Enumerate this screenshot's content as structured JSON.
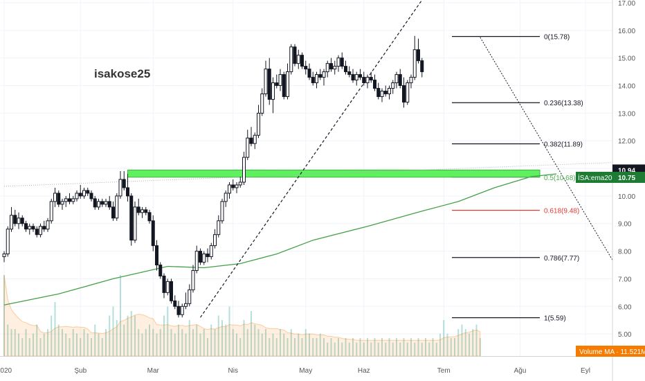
{
  "watermark": "isakose25",
  "chart_data": {
    "type": "candlestick",
    "y_axis": {
      "ticks": [
        "17.00",
        "16.00",
        "15.00",
        "14.00",
        "13.00",
        "12.00",
        "11.00",
        "10.00",
        "9.00",
        "8.00",
        "7.00",
        "6.00",
        "5.00"
      ],
      "range": [
        4.2,
        17.1
      ]
    },
    "x_axis": {
      "ticks": [
        {
          "label": "2020",
          "i": 0
        },
        {
          "label": "Şub",
          "i": 21
        },
        {
          "label": "Mar",
          "i": 41
        },
        {
          "label": "Nis",
          "i": 63
        },
        {
          "label": "May",
          "i": 83
        },
        {
          "label": "Haz",
          "i": 99
        },
        {
          "label": "Tem",
          "i": 121
        },
        {
          "label": "Ağu",
          "i": 142
        },
        {
          "label": "Eyl",
          "i": 160
        }
      ]
    },
    "price_badge": {
      "label": "10.94",
      "value": 10.94,
      "color": "#131722"
    },
    "ema_badge": {
      "label": "İSA:ema200",
      "value_label": "10.75",
      "value": 10.75,
      "color": "#1e7b34"
    },
    "volume_badge": {
      "label": "Volume MA · 11.521M",
      "color": "#f57c00"
    },
    "fib_levels": [
      {
        "label": "0(15.78)",
        "value": 15.78,
        "color": "#131722"
      },
      {
        "label": "0.236(13.38)",
        "value": 13.38,
        "color": "#131722"
      },
      {
        "label": "0.382(11.89)",
        "value": 11.89,
        "color": "#131722"
      },
      {
        "label": "0.5(10.68)",
        "value": 10.68,
        "color": "#4caf50"
      },
      {
        "label": "0.618(9.48)",
        "value": 9.48,
        "color": "#e53935"
      },
      {
        "label": "0.786(7.77)",
        "value": 7.77,
        "color": "#131722"
      },
      {
        "label": "1(5.59)",
        "value": 5.59,
        "color": "#131722"
      }
    ],
    "support_zone": {
      "top": 10.94,
      "bottom": 10.68,
      "color": "#5ef05e"
    },
    "ema200": [
      {
        "i": 0,
        "v": 6.05
      },
      {
        "i": 15,
        "v": 6.45
      },
      {
        "i": 30,
        "v": 7.0
      },
      {
        "i": 45,
        "v": 7.45
      },
      {
        "i": 55,
        "v": 7.4
      },
      {
        "i": 65,
        "v": 7.55
      },
      {
        "i": 75,
        "v": 7.9
      },
      {
        "i": 85,
        "v": 8.4
      },
      {
        "i": 100,
        "v": 8.9
      },
      {
        "i": 115,
        "v": 9.45
      },
      {
        "i": 125,
        "v": 9.8
      },
      {
        "i": 135,
        "v": 10.3
      },
      {
        "i": 145,
        "v": 10.7
      },
      {
        "i": 152,
        "v": 10.8
      }
    ],
    "trend_line_up": [
      {
        "i": 54,
        "v": 5.6
      },
      {
        "i": 115,
        "v": 17.1
      }
    ],
    "trend_line_down": [
      {
        "i": 131,
        "v": 15.75
      },
      {
        "i": 175,
        "v": 6.0
      }
    ],
    "faint_line": [
      {
        "i": 0,
        "v": 10.35
      },
      {
        "i": 175,
        "v": 11.25
      }
    ],
    "candles": [
      {
        "o": 7.8,
        "h": 8.0,
        "l": 7.6,
        "c": 7.9
      },
      {
        "o": 7.9,
        "h": 8.9,
        "l": 7.8,
        "c": 8.8
      },
      {
        "o": 8.8,
        "h": 9.6,
        "l": 8.7,
        "c": 9.3
      },
      {
        "o": 9.3,
        "h": 9.5,
        "l": 8.9,
        "c": 9.0
      },
      {
        "o": 9.0,
        "h": 9.4,
        "l": 8.8,
        "c": 9.2
      },
      {
        "o": 9.2,
        "h": 9.3,
        "l": 8.9,
        "c": 9.0
      },
      {
        "o": 9.0,
        "h": 9.1,
        "l": 8.7,
        "c": 8.8
      },
      {
        "o": 8.8,
        "h": 9.0,
        "l": 8.6,
        "c": 8.9
      },
      {
        "o": 8.9,
        "h": 9.0,
        "l": 8.7,
        "c": 8.8
      },
      {
        "o": 8.8,
        "h": 8.9,
        "l": 8.5,
        "c": 8.6
      },
      {
        "o": 8.6,
        "h": 9.0,
        "l": 8.5,
        "c": 8.9
      },
      {
        "o": 8.9,
        "h": 9.1,
        "l": 8.7,
        "c": 8.8
      },
      {
        "o": 8.8,
        "h": 9.2,
        "l": 8.7,
        "c": 9.1
      },
      {
        "o": 9.1,
        "h": 9.9,
        "l": 9.0,
        "c": 9.8
      },
      {
        "o": 9.8,
        "h": 10.3,
        "l": 9.6,
        "c": 10.1
      },
      {
        "o": 10.1,
        "h": 10.2,
        "l": 9.6,
        "c": 9.7
      },
      {
        "o": 9.7,
        "h": 9.9,
        "l": 9.5,
        "c": 9.8
      },
      {
        "o": 9.8,
        "h": 10.0,
        "l": 9.6,
        "c": 9.9
      },
      {
        "o": 9.9,
        "h": 10.1,
        "l": 9.7,
        "c": 9.8
      },
      {
        "o": 9.8,
        "h": 10.0,
        "l": 9.7,
        "c": 9.9
      },
      {
        "o": 9.9,
        "h": 10.2,
        "l": 9.8,
        "c": 10.1
      },
      {
        "o": 10.1,
        "h": 10.4,
        "l": 9.9,
        "c": 10.0
      },
      {
        "o": 10.0,
        "h": 10.3,
        "l": 9.9,
        "c": 10.2
      },
      {
        "o": 10.2,
        "h": 10.3,
        "l": 10.0,
        "c": 10.1
      },
      {
        "o": 10.1,
        "h": 10.2,
        "l": 9.8,
        "c": 9.9
      },
      {
        "o": 9.9,
        "h": 10.0,
        "l": 9.5,
        "c": 9.6
      },
      {
        "o": 9.6,
        "h": 9.9,
        "l": 9.5,
        "c": 9.8
      },
      {
        "o": 9.8,
        "h": 9.9,
        "l": 9.6,
        "c": 9.7
      },
      {
        "o": 9.7,
        "h": 9.9,
        "l": 9.6,
        "c": 9.8
      },
      {
        "o": 9.8,
        "h": 10.0,
        "l": 9.5,
        "c": 9.6
      },
      {
        "o": 9.6,
        "h": 9.8,
        "l": 9.1,
        "c": 9.2
      },
      {
        "o": 9.2,
        "h": 10.1,
        "l": 9.1,
        "c": 10.0
      },
      {
        "o": 10.0,
        "h": 10.9,
        "l": 9.9,
        "c": 10.6
      },
      {
        "o": 10.6,
        "h": 10.9,
        "l": 10.2,
        "c": 10.3
      },
      {
        "o": 10.3,
        "h": 10.8,
        "l": 9.8,
        "c": 10.0
      },
      {
        "o": 10.0,
        "h": 10.1,
        "l": 8.2,
        "c": 8.4
      },
      {
        "o": 8.4,
        "h": 9.8,
        "l": 8.3,
        "c": 9.6
      },
      {
        "o": 9.6,
        "h": 9.9,
        "l": 9.3,
        "c": 9.4
      },
      {
        "o": 9.4,
        "h": 9.6,
        "l": 9.2,
        "c": 9.5
      },
      {
        "o": 9.5,
        "h": 9.6,
        "l": 9.3,
        "c": 9.4
      },
      {
        "o": 9.4,
        "h": 9.5,
        "l": 9.0,
        "c": 9.1
      },
      {
        "o": 9.1,
        "h": 9.3,
        "l": 8.0,
        "c": 8.2
      },
      {
        "o": 8.2,
        "h": 8.4,
        "l": 7.3,
        "c": 7.5
      },
      {
        "o": 7.5,
        "h": 7.6,
        "l": 7.0,
        "c": 7.1
      },
      {
        "o": 7.1,
        "h": 7.2,
        "l": 6.3,
        "c": 6.5
      },
      {
        "o": 6.5,
        "h": 7.0,
        "l": 6.4,
        "c": 6.9
      },
      {
        "o": 6.9,
        "h": 7.0,
        "l": 6.1,
        "c": 6.2
      },
      {
        "o": 6.2,
        "h": 6.4,
        "l": 5.9,
        "c": 6.0
      },
      {
        "o": 6.0,
        "h": 6.2,
        "l": 5.6,
        "c": 5.7
      },
      {
        "o": 5.7,
        "h": 6.1,
        "l": 5.6,
        "c": 6.0
      },
      {
        "o": 6.0,
        "h": 6.5,
        "l": 5.9,
        "c": 6.1
      },
      {
        "o": 6.1,
        "h": 6.8,
        "l": 6.0,
        "c": 6.6
      },
      {
        "o": 6.6,
        "h": 7.5,
        "l": 6.5,
        "c": 7.3
      },
      {
        "o": 7.3,
        "h": 8.2,
        "l": 7.2,
        "c": 8.0
      },
      {
        "o": 8.0,
        "h": 8.1,
        "l": 7.5,
        "c": 7.6
      },
      {
        "o": 7.6,
        "h": 8.0,
        "l": 7.5,
        "c": 7.9
      },
      {
        "o": 7.9,
        "h": 8.1,
        "l": 7.6,
        "c": 7.8
      },
      {
        "o": 7.8,
        "h": 8.3,
        "l": 7.7,
        "c": 8.2
      },
      {
        "o": 8.2,
        "h": 8.8,
        "l": 8.1,
        "c": 8.6
      },
      {
        "o": 8.6,
        "h": 9.3,
        "l": 8.5,
        "c": 9.1
      },
      {
        "o": 9.1,
        "h": 9.9,
        "l": 9.0,
        "c": 9.8
      },
      {
        "o": 9.8,
        "h": 10.2,
        "l": 9.6,
        "c": 10.1
      },
      {
        "o": 10.1,
        "h": 10.5,
        "l": 9.9,
        "c": 10.4
      },
      {
        "o": 10.4,
        "h": 10.6,
        "l": 10.2,
        "c": 10.3
      },
      {
        "o": 10.3,
        "h": 10.5,
        "l": 10.1,
        "c": 10.4
      },
      {
        "o": 10.4,
        "h": 10.7,
        "l": 10.3,
        "c": 10.5
      },
      {
        "o": 10.5,
        "h": 11.6,
        "l": 10.4,
        "c": 11.4
      },
      {
        "o": 11.4,
        "h": 12.4,
        "l": 11.3,
        "c": 12.1
      },
      {
        "o": 12.1,
        "h": 12.5,
        "l": 11.8,
        "c": 11.9
      },
      {
        "o": 11.9,
        "h": 12.3,
        "l": 11.7,
        "c": 12.2
      },
      {
        "o": 12.2,
        "h": 13.3,
        "l": 12.1,
        "c": 13.0
      },
      {
        "o": 13.0,
        "h": 13.9,
        "l": 12.9,
        "c": 13.7
      },
      {
        "o": 13.7,
        "h": 14.9,
        "l": 13.6,
        "c": 14.6
      },
      {
        "o": 14.6,
        "h": 15.0,
        "l": 13.3,
        "c": 13.5
      },
      {
        "o": 13.5,
        "h": 14.3,
        "l": 13.0,
        "c": 14.1
      },
      {
        "o": 14.1,
        "h": 14.4,
        "l": 13.9,
        "c": 14.0
      },
      {
        "o": 14.0,
        "h": 14.6,
        "l": 13.8,
        "c": 14.4
      },
      {
        "o": 14.4,
        "h": 14.5,
        "l": 13.5,
        "c": 13.6
      },
      {
        "o": 13.6,
        "h": 14.8,
        "l": 13.5,
        "c": 14.5
      },
      {
        "o": 14.5,
        "h": 15.5,
        "l": 14.4,
        "c": 15.4
      },
      {
        "o": 15.4,
        "h": 15.5,
        "l": 14.7,
        "c": 14.8
      },
      {
        "o": 14.8,
        "h": 15.3,
        "l": 14.6,
        "c": 15.1
      },
      {
        "o": 15.1,
        "h": 15.2,
        "l": 14.6,
        "c": 14.7
      },
      {
        "o": 14.7,
        "h": 14.9,
        "l": 14.4,
        "c": 14.6
      },
      {
        "o": 14.6,
        "h": 14.8,
        "l": 14.2,
        "c": 14.3
      },
      {
        "o": 14.3,
        "h": 14.5,
        "l": 14.0,
        "c": 14.1
      },
      {
        "o": 14.1,
        "h": 14.5,
        "l": 13.9,
        "c": 14.4
      },
      {
        "o": 14.4,
        "h": 14.6,
        "l": 14.2,
        "c": 14.3
      },
      {
        "o": 14.3,
        "h": 14.6,
        "l": 14.0,
        "c": 14.5
      },
      {
        "o": 14.5,
        "h": 14.9,
        "l": 14.3,
        "c": 14.8
      },
      {
        "o": 14.8,
        "h": 15.0,
        "l": 14.5,
        "c": 14.6
      },
      {
        "o": 14.6,
        "h": 14.9,
        "l": 14.4,
        "c": 14.7
      },
      {
        "o": 14.7,
        "h": 15.1,
        "l": 14.5,
        "c": 15.0
      },
      {
        "o": 15.0,
        "h": 15.2,
        "l": 14.6,
        "c": 14.7
      },
      {
        "o": 14.7,
        "h": 14.9,
        "l": 14.4,
        "c": 14.5
      },
      {
        "o": 14.5,
        "h": 14.7,
        "l": 14.3,
        "c": 14.4
      },
      {
        "o": 14.4,
        "h": 14.6,
        "l": 14.1,
        "c": 14.2
      },
      {
        "o": 14.2,
        "h": 14.5,
        "l": 14.0,
        "c": 14.4
      },
      {
        "o": 14.4,
        "h": 14.6,
        "l": 14.2,
        "c": 14.3
      },
      {
        "o": 14.3,
        "h": 14.5,
        "l": 14.0,
        "c": 14.1
      },
      {
        "o": 14.1,
        "h": 14.4,
        "l": 13.9,
        "c": 14.3
      },
      {
        "o": 14.3,
        "h": 14.5,
        "l": 14.1,
        "c": 14.2
      },
      {
        "o": 14.2,
        "h": 14.4,
        "l": 13.8,
        "c": 13.9
      },
      {
        "o": 13.9,
        "h": 14.1,
        "l": 13.5,
        "c": 13.6
      },
      {
        "o": 13.6,
        "h": 13.9,
        "l": 13.4,
        "c": 13.8
      },
      {
        "o": 13.8,
        "h": 14.0,
        "l": 13.6,
        "c": 13.7
      },
      {
        "o": 13.7,
        "h": 14.0,
        "l": 13.5,
        "c": 13.9
      },
      {
        "o": 13.9,
        "h": 14.2,
        "l": 13.7,
        "c": 14.1
      },
      {
        "o": 14.1,
        "h": 14.5,
        "l": 13.9,
        "c": 14.4
      },
      {
        "o": 14.4,
        "h": 14.6,
        "l": 13.9,
        "c": 14.0
      },
      {
        "o": 14.0,
        "h": 14.3,
        "l": 13.2,
        "c": 13.4
      },
      {
        "o": 13.4,
        "h": 14.2,
        "l": 13.3,
        "c": 14.1
      },
      {
        "o": 14.1,
        "h": 14.4,
        "l": 13.9,
        "c": 14.3
      },
      {
        "o": 14.3,
        "h": 15.8,
        "l": 14.2,
        "c": 15.3
      },
      {
        "o": 15.3,
        "h": 15.7,
        "l": 14.8,
        "c": 14.9
      },
      {
        "o": 14.9,
        "h": 15.0,
        "l": 14.3,
        "c": 14.5
      }
    ],
    "volume": [
      0.9,
      0.35,
      0.3,
      0.3,
      0.25,
      0.2,
      0.3,
      0.2,
      0.25,
      0.35,
      0.2,
      0.25,
      0.3,
      0.45,
      0.6,
      0.35,
      0.3,
      0.25,
      0.2,
      0.3,
      0.25,
      0.2,
      0.3,
      0.25,
      0.2,
      0.35,
      0.25,
      0.2,
      0.3,
      0.45,
      0.55,
      0.4,
      0.9,
      0.35,
      0.45,
      0.5,
      0.45,
      0.3,
      0.25,
      0.3,
      0.35,
      0.3,
      0.25,
      0.3,
      0.45,
      0.55,
      0.3,
      0.25,
      0.35,
      0.3,
      0.25,
      0.4,
      0.3,
      0.35,
      0.25,
      0.3,
      0.2,
      0.35,
      0.3,
      0.45,
      0.4,
      0.35,
      0.55,
      0.3,
      0.25,
      0.2,
      0.4,
      0.3,
      0.5,
      0.35,
      0.3,
      0.25,
      0.3,
      0.2,
      0.25,
      0.2,
      0.3,
      0.25,
      0.2,
      0.3,
      0.2,
      0.25,
      0.2,
      0.3,
      0.25,
      0.2,
      0.2,
      0.25,
      0.2,
      0.15,
      0.2,
      0.15,
      0.2,
      0.15,
      0.2,
      0.15,
      0.2,
      0.15,
      0.2,
      0.15,
      0.2,
      0.15,
      0.2,
      0.15,
      0.2,
      0.15,
      0.2,
      0.15,
      0.2,
      0.15,
      0.2,
      0.15,
      0.2,
      0.15,
      0.2,
      0.15,
      0.2,
      0.15,
      0.2,
      0.15,
      0.25,
      0.4,
      0.25,
      0.2,
      0.2,
      0.3,
      0.35,
      0.3,
      0.25,
      0.3,
      0.35,
      0.2
    ]
  }
}
